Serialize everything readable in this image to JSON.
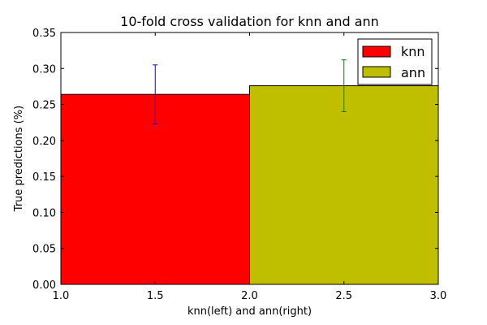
{
  "chart_data": {
    "type": "bar",
    "title": "10-fold cross validation for knn and ann",
    "xlabel": "knn(left) and ann(right)",
    "ylabel": "True predictions (%)",
    "xlim": [
      1.0,
      3.0
    ],
    "ylim": [
      0.0,
      0.35
    ],
    "x_ticks": [
      "1.0",
      "1.5",
      "2.0",
      "2.5",
      "3.0"
    ],
    "y_ticks": [
      "0.00",
      "0.05",
      "0.10",
      "0.15",
      "0.20",
      "0.25",
      "0.30",
      "0.35"
    ],
    "grid": false,
    "legend_position": "top-right",
    "series": [
      {
        "name": "knn",
        "x_start": 1.0,
        "x_end": 2.0,
        "value": 0.264,
        "error": 0.041,
        "color": "#ff0000",
        "error_color": "#0000ff"
      },
      {
        "name": "ann",
        "x_start": 2.0,
        "x_end": 3.0,
        "value": 0.276,
        "error": 0.036,
        "color": "#bfbf00",
        "error_color": "#008000"
      }
    ]
  }
}
